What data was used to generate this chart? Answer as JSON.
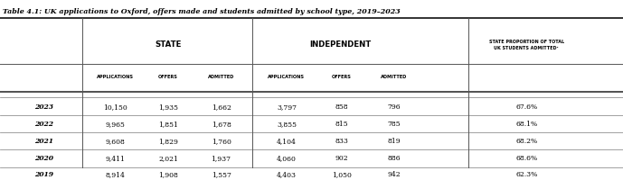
{
  "title": "Table 4.1: UK applications to Oxford, offers made and students admitted by school type, 2019–2023",
  "state_label": "STATE",
  "indep_label": "INDEPENDENT",
  "last_col_header": "STATE PROPORTION OF TOTAL\nUK STUDENTS ADMITTED¹",
  "sub_headers": [
    "APPLICATIONS",
    "OFFERS",
    "ADMITTED",
    "APPLICATIONS",
    "OFFERS",
    "ADMITTED"
  ],
  "years": [
    "2023",
    "2022",
    "2021",
    "2020",
    "2019"
  ],
  "state_applications": [
    "10,150",
    "9,965",
    "9,608",
    "9,411",
    "8,914"
  ],
  "state_offers": [
    "1,935",
    "1,851",
    "1,829",
    "2,021",
    "1,908"
  ],
  "state_admitted": [
    "1,662",
    "1,678",
    "1,760",
    "1,937",
    "1,557"
  ],
  "indep_applications": [
    "3,797",
    "3,855",
    "4,104",
    "4,060",
    "4,403"
  ],
  "indep_offers": [
    "858",
    "815",
    "833",
    "902",
    "1,050"
  ],
  "indep_admitted": [
    "796",
    "785",
    "819",
    "886",
    "942"
  ],
  "proportion": [
    "67.6%",
    "68.1%",
    "68.2%",
    "68.6%",
    "62.3%"
  ],
  "bg_color": "#ffffff",
  "text_color": "#000000"
}
